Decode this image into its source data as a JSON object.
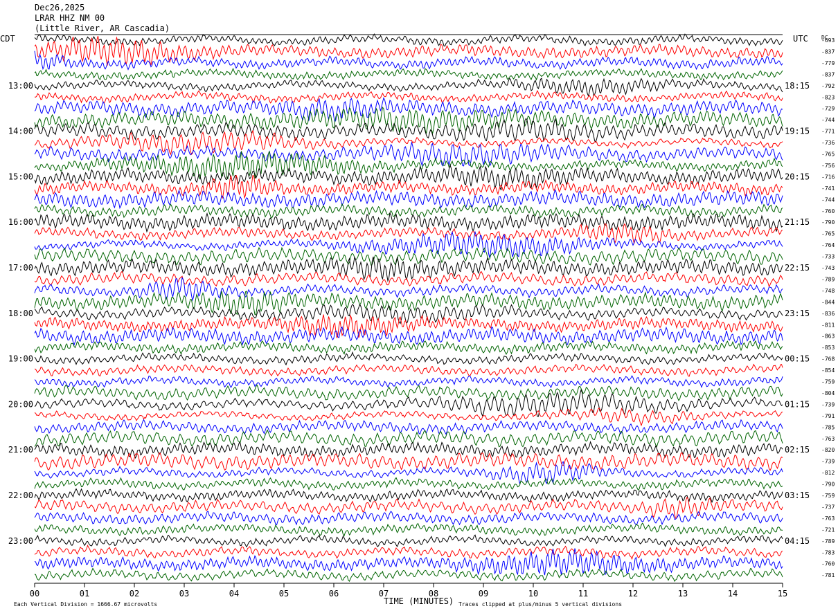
{
  "header": {
    "date": "Dec26,2025",
    "station": "LRAR HHZ NM 00",
    "location": "(Little River, AR Cascadia)"
  },
  "labels": {
    "left_zone": "CDT",
    "right_zone": "UTC",
    "dc_header": "DC",
    "xlabel": "TIME (MINUTES)",
    "footer_left": "Each Vertical Division = 1666.67 microvolts",
    "footer_right": "Traces clipped at plus/minus 5 vertical divisions"
  },
  "colors": {
    "trace_cycle": [
      "#000000",
      "#ff0000",
      "#0000ff",
      "#006400"
    ]
  },
  "chart_data": {
    "type": "line",
    "title": "LRAR HHZ NM 00",
    "xlabel": "TIME (MINUTES)",
    "xlim": [
      0,
      15
    ],
    "x_ticks": [
      "00",
      "01",
      "02",
      "03",
      "04",
      "05",
      "06",
      "07",
      "08",
      "09",
      "10",
      "11",
      "12",
      "13",
      "14",
      "15"
    ],
    "left_time_labels": [
      "13:00",
      "14:00",
      "15:00",
      "16:00",
      "17:00",
      "18:00",
      "19:00",
      "20:00",
      "21:00",
      "22:00",
      "23:00"
    ],
    "right_time_labels": [
      "18:15",
      "19:15",
      "20:15",
      "21:15",
      "22:15",
      "23:15",
      "00:15",
      "01:15",
      "02:15",
      "03:15",
      "04:15"
    ],
    "trace_count": 48,
    "dc_offsets": [
      "-693",
      "-837",
      "-779",
      "-837",
      "-792",
      "-823",
      "-729",
      "-744",
      "-771",
      "-736",
      "-765",
      "-756",
      "-716",
      "-741",
      "-744",
      "-760",
      "-790",
      "-765",
      "-764",
      "-733",
      "-743",
      "-789",
      "-748",
      "-844",
      "-836",
      "-811",
      "-863",
      "-853",
      "-768",
      "-854",
      "-759",
      "-804",
      "-739",
      "-791",
      "-785",
      "-763",
      "-820",
      "-739",
      "-812",
      "-790",
      "-759",
      "-737",
      "-763",
      "-721",
      "-789",
      "-783",
      "-760",
      "-781"
    ]
  }
}
